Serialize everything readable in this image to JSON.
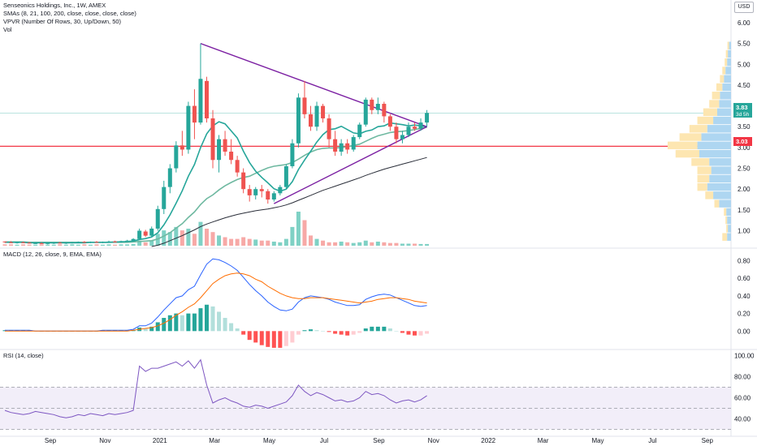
{
  "legend": {
    "symbol": "Senseonics Holdings, Inc., 1W, AMEX",
    "sma": "SMAs (8, 21, 100, 200, close, close, close, close)",
    "vpvr": "VPVR (Number Of Rows, 30, Up/Down, 50)",
    "vol": "Vol",
    "macd": "MACD (12, 26, close, 9, EMA, EMA)",
    "rsi": "RSI (14, close)"
  },
  "currency": "USD",
  "colors": {
    "up": "#26a69a",
    "down": "#ef5350",
    "sma8": "#26a69a",
    "sma21": "#6fb9a1",
    "sma100": "#2a2e39",
    "triangle": "#7b1fa2",
    "macd": "#2962ff",
    "signal": "#ff6d00",
    "rsi": "#7e57c2",
    "price_badge": "#26a69a",
    "hline_badge": "#f23645",
    "vp_up": "#aed6f1",
    "vp_down": "#fde6b1"
  },
  "price_badges": {
    "last_price": "3.83",
    "countdown": "3d 5h",
    "hline_price": "3.03"
  },
  "chart_data": [
    {
      "type": "candlestick",
      "title": "Senseonics Holdings, Inc., 1W, AMEX",
      "ylim": [
        0.6,
        6.0
      ],
      "y_ticks": [
        "6.00",
        "5.50",
        "5.00",
        "4.50",
        "4.00",
        "3.50",
        "3.00",
        "2.50",
        "2.00",
        "1.50",
        "1.00"
      ],
      "x_ticks": [
        "Sep",
        "Nov",
        "2021",
        "Mar",
        "May",
        "Jul",
        "Sep",
        "Nov",
        "2022",
        "Mar",
        "May",
        "Jul",
        "Sep"
      ],
      "candles": [
        [
          0.74,
          0.74,
          0.71,
          0.72
        ],
        [
          0.72,
          0.75,
          0.7,
          0.71
        ],
        [
          0.71,
          0.73,
          0.69,
          0.72
        ],
        [
          0.72,
          0.74,
          0.7,
          0.71
        ],
        [
          0.71,
          0.73,
          0.69,
          0.7
        ],
        [
          0.7,
          0.72,
          0.68,
          0.7
        ],
        [
          0.7,
          0.72,
          0.68,
          0.69
        ],
        [
          0.69,
          0.71,
          0.67,
          0.7
        ],
        [
          0.7,
          0.72,
          0.68,
          0.71
        ],
        [
          0.71,
          0.73,
          0.69,
          0.7
        ],
        [
          0.7,
          0.72,
          0.68,
          0.71
        ],
        [
          0.71,
          0.73,
          0.69,
          0.72
        ],
        [
          0.72,
          0.74,
          0.7,
          0.73
        ],
        [
          0.73,
          0.75,
          0.71,
          0.72
        ],
        [
          0.72,
          0.74,
          0.7,
          0.73
        ],
        [
          0.73,
          0.75,
          0.71,
          0.72
        ],
        [
          0.72,
          0.74,
          0.7,
          0.73
        ],
        [
          0.73,
          0.76,
          0.71,
          0.74
        ],
        [
          0.74,
          0.76,
          0.72,
          0.73
        ],
        [
          0.73,
          0.76,
          0.71,
          0.75
        ],
        [
          0.75,
          0.78,
          0.73,
          0.76
        ],
        [
          0.76,
          0.82,
          0.74,
          0.8
        ],
        [
          0.8,
          1.05,
          0.78,
          1.0
        ],
        [
          0.98,
          1.02,
          0.85,
          0.88
        ],
        [
          0.88,
          1.1,
          0.86,
          1.05
        ],
        [
          1.05,
          1.6,
          1.0,
          1.52
        ],
        [
          1.52,
          2.2,
          1.4,
          2.05
        ],
        [
          2.05,
          2.6,
          1.9,
          2.5
        ],
        [
          2.5,
          3.15,
          2.4,
          3.05
        ],
        [
          3.05,
          3.4,
          2.8,
          2.95
        ],
        [
          2.95,
          4.1,
          2.85,
          4.0
        ],
        [
          4.0,
          4.4,
          3.2,
          3.6
        ],
        [
          3.6,
          5.5,
          3.55,
          4.65
        ],
        [
          4.6,
          4.7,
          3.6,
          3.7
        ],
        [
          3.7,
          3.9,
          2.5,
          2.7
        ],
        [
          2.7,
          3.3,
          2.4,
          3.2
        ],
        [
          3.2,
          3.4,
          2.8,
          2.9
        ],
        [
          2.9,
          3.2,
          2.6,
          2.7
        ],
        [
          2.7,
          2.8,
          2.3,
          2.4
        ],
        [
          2.4,
          2.5,
          1.9,
          2.0
        ],
        [
          2.0,
          2.1,
          1.7,
          1.85
        ],
        [
          1.85,
          2.05,
          1.75,
          2.0
        ],
        [
          2.0,
          2.1,
          1.8,
          1.95
        ],
        [
          1.95,
          2.0,
          1.65,
          1.75
        ],
        [
          1.75,
          1.95,
          1.7,
          1.9
        ],
        [
          1.9,
          2.1,
          1.85,
          2.05
        ],
        [
          2.05,
          2.6,
          2.0,
          2.55
        ],
        [
          2.55,
          3.2,
          2.5,
          3.1
        ],
        [
          3.1,
          4.3,
          3.0,
          4.2
        ],
        [
          4.2,
          4.6,
          3.7,
          3.8
        ],
        [
          3.8,
          4.0,
          3.4,
          3.5
        ],
        [
          3.5,
          4.1,
          3.4,
          4.0
        ],
        [
          4.0,
          4.05,
          3.6,
          3.7
        ],
        [
          3.7,
          3.8,
          3.0,
          3.2
        ],
        [
          3.2,
          3.4,
          2.8,
          2.9
        ],
        [
          2.9,
          3.2,
          2.8,
          3.1
        ],
        [
          3.1,
          3.2,
          2.85,
          2.95
        ],
        [
          2.95,
          3.3,
          2.9,
          3.25
        ],
        [
          3.25,
          3.6,
          3.2,
          3.55
        ],
        [
          3.55,
          4.2,
          3.5,
          4.15
        ],
        [
          4.15,
          4.2,
          3.8,
          3.9
        ],
        [
          3.9,
          4.2,
          3.8,
          4.05
        ],
        [
          4.05,
          4.1,
          3.6,
          3.75
        ],
        [
          3.75,
          3.8,
          3.4,
          3.5
        ],
        [
          3.5,
          3.6,
          3.1,
          3.2
        ],
        [
          3.2,
          3.4,
          3.1,
          3.3
        ],
        [
          3.3,
          3.6,
          3.25,
          3.5
        ],
        [
          3.5,
          3.6,
          3.4,
          3.45
        ],
        [
          3.45,
          3.7,
          3.4,
          3.6
        ],
        [
          3.6,
          3.9,
          3.5,
          3.83
        ]
      ],
      "volume": [
        0.04,
        0.04,
        0.03,
        0.04,
        0.03,
        0.03,
        0.04,
        0.03,
        0.03,
        0.04,
        0.03,
        0.04,
        0.03,
        0.04,
        0.03,
        0.04,
        0.03,
        0.04,
        0.03,
        0.04,
        0.04,
        0.05,
        0.15,
        0.1,
        0.15,
        0.35,
        0.45,
        0.4,
        0.55,
        0.45,
        0.5,
        0.35,
        0.7,
        0.5,
        0.4,
        0.3,
        0.25,
        0.2,
        0.2,
        0.25,
        0.2,
        0.18,
        0.15,
        0.15,
        0.12,
        0.1,
        0.2,
        0.55,
        1.0,
        0.75,
        0.3,
        0.2,
        0.15,
        0.1,
        0.1,
        0.12,
        0.1,
        0.08,
        0.1,
        0.15,
        0.1,
        0.12,
        0.1,
        0.08,
        0.08,
        0.06,
        0.06,
        0.06,
        0.05,
        0.05
      ],
      "sma8": [
        0.72,
        0.72,
        0.72,
        0.72,
        0.71,
        0.71,
        0.71,
        0.71,
        0.71,
        0.71,
        0.71,
        0.71,
        0.71,
        0.71,
        0.72,
        0.72,
        0.72,
        0.72,
        0.73,
        0.73,
        0.74,
        0.75,
        0.79,
        0.81,
        0.85,
        0.95,
        1.14,
        1.38,
        1.66,
        1.96,
        2.31,
        2.59,
        3.0,
        3.33,
        3.52,
        3.62,
        3.57,
        3.4,
        3.23,
        2.91,
        2.64,
        2.43,
        2.28,
        2.15,
        2.01,
        1.95,
        2.0,
        2.18,
        2.47,
        2.7,
        2.91,
        3.13,
        3.31,
        3.43,
        3.45,
        3.51,
        3.43,
        3.35,
        3.33,
        3.39,
        3.42,
        3.5,
        3.52,
        3.59,
        3.57,
        3.55,
        3.52,
        3.54,
        3.52,
        3.5
      ],
      "sma21": [
        0.73,
        0.73,
        0.73,
        0.73,
        0.72,
        0.72,
        0.72,
        0.72,
        0.72,
        0.72,
        0.72,
        0.72,
        0.72,
        0.72,
        0.72,
        0.72,
        0.72,
        0.72,
        0.72,
        0.72,
        0.72,
        0.73,
        0.74,
        0.75,
        0.76,
        0.8,
        0.87,
        0.95,
        1.06,
        1.17,
        1.32,
        1.45,
        1.63,
        1.77,
        1.86,
        1.98,
        2.08,
        2.16,
        2.23,
        2.28,
        2.31,
        2.38,
        2.45,
        2.51,
        2.55,
        2.57,
        2.59,
        2.64,
        2.72,
        2.81,
        2.89,
        2.95,
        2.98,
        2.99,
        2.99,
        3.0,
        3.02,
        3.05,
        3.08,
        3.15,
        3.22,
        3.28,
        3.32,
        3.36,
        3.38,
        3.39,
        3.41,
        3.43,
        3.46,
        3.49
      ],
      "sma100": [
        null,
        null,
        null,
        null,
        null,
        null,
        null,
        null,
        null,
        null,
        null,
        null,
        null,
        null,
        null,
        null,
        null,
        null,
        null,
        null,
        null,
        null,
        null,
        null,
        0.62,
        0.65,
        0.7,
        0.76,
        0.82,
        0.88,
        0.95,
        1.02,
        1.1,
        1.16,
        1.21,
        1.26,
        1.31,
        1.35,
        1.39,
        1.42,
        1.45,
        1.48,
        1.5,
        1.52,
        1.55,
        1.58,
        1.62,
        1.67,
        1.73,
        1.79,
        1.85,
        1.91,
        1.97,
        2.02,
        2.07,
        2.12,
        2.17,
        2.22,
        2.27,
        2.33,
        2.38,
        2.43,
        2.48,
        2.52,
        2.56,
        2.6,
        2.64,
        2.68,
        2.72,
        2.76
      ],
      "triangle": {
        "upper": [
          [
            32,
            5.5
          ],
          [
            69,
            3.5
          ]
        ],
        "lower": [
          [
            44,
            1.65
          ],
          [
            69,
            3.5
          ]
        ]
      },
      "horizontal_line": 3.03,
      "volume_profile": {
        "row_prices": [
          0.85,
          1.05,
          1.25,
          1.45,
          1.65,
          1.85,
          2.05,
          2.25,
          2.45,
          2.65,
          2.85,
          3.05,
          3.25,
          3.45,
          3.65,
          3.85,
          4.05,
          4.25,
          4.45,
          4.65,
          4.85,
          5.05,
          5.25,
          5.45
        ],
        "up": [
          0.1,
          0.08,
          0.1,
          0.12,
          0.3,
          0.45,
          0.6,
          0.55,
          0.5,
          0.55,
          0.8,
          0.85,
          0.75,
          0.6,
          0.45,
          0.35,
          0.3,
          0.28,
          0.22,
          0.18,
          0.14,
          0.1,
          0.08,
          0.05
        ],
        "down": [
          0.12,
          0.04,
          0.04,
          0.06,
          0.12,
          0.2,
          0.25,
          0.3,
          0.35,
          0.45,
          0.6,
          0.75,
          0.55,
          0.45,
          0.4,
          0.35,
          0.25,
          0.2,
          0.15,
          0.1,
          0.08,
          0.06,
          0.05,
          0.04
        ]
      }
    },
    {
      "type": "line",
      "title": "MACD (12, 26, close, 9, EMA, EMA)",
      "ylim": [
        -0.2,
        0.86
      ],
      "y_ticks": [
        "0.80",
        "0.60",
        "0.40",
        "0.20",
        "0.00"
      ],
      "macd": [
        0.01,
        0.01,
        0.01,
        0.01,
        0.01,
        0.0,
        0.0,
        0.0,
        0.0,
        0.0,
        0.0,
        0.0,
        0.0,
        0.0,
        0.0,
        0.0,
        0.01,
        0.01,
        0.01,
        0.01,
        0.01,
        0.02,
        0.06,
        0.06,
        0.09,
        0.16,
        0.24,
        0.31,
        0.38,
        0.4,
        0.47,
        0.51,
        0.64,
        0.76,
        0.82,
        0.81,
        0.78,
        0.74,
        0.69,
        0.61,
        0.53,
        0.46,
        0.4,
        0.33,
        0.28,
        0.24,
        0.23,
        0.25,
        0.33,
        0.38,
        0.4,
        0.39,
        0.38,
        0.36,
        0.33,
        0.31,
        0.29,
        0.29,
        0.3,
        0.36,
        0.39,
        0.41,
        0.42,
        0.41,
        0.38,
        0.35,
        0.32,
        0.29,
        0.28,
        0.29
      ],
      "signal": [
        0.0,
        0.0,
        0.0,
        0.0,
        0.0,
        0.0,
        0.0,
        0.0,
        0.0,
        0.0,
        0.0,
        0.0,
        0.0,
        0.0,
        0.0,
        0.0,
        0.0,
        0.0,
        0.0,
        0.0,
        0.0,
        0.01,
        0.02,
        0.03,
        0.04,
        0.06,
        0.09,
        0.13,
        0.18,
        0.22,
        0.27,
        0.31,
        0.38,
        0.46,
        0.54,
        0.59,
        0.63,
        0.65,
        0.66,
        0.65,
        0.63,
        0.59,
        0.56,
        0.51,
        0.47,
        0.43,
        0.4,
        0.38,
        0.37,
        0.37,
        0.38,
        0.38,
        0.38,
        0.37,
        0.36,
        0.35,
        0.34,
        0.33,
        0.32,
        0.33,
        0.34,
        0.36,
        0.37,
        0.38,
        0.38,
        0.37,
        0.36,
        0.34,
        0.33,
        0.32
      ]
    },
    {
      "type": "line",
      "title": "RSI (14, close)",
      "ylim": [
        25,
        105
      ],
      "y_ticks": [
        "100.00",
        "80.00",
        "60.00",
        "40.00"
      ],
      "bands": [
        70,
        50,
        30
      ],
      "rsi": [
        48,
        46,
        45,
        44,
        45,
        47,
        46,
        45,
        44,
        42,
        41,
        42,
        44,
        43,
        45,
        44,
        43,
        45,
        44,
        45,
        46,
        48,
        90,
        85,
        88,
        88,
        90,
        92,
        94,
        90,
        95,
        88,
        96,
        72,
        55,
        58,
        60,
        57,
        55,
        52,
        51,
        53,
        52,
        50,
        52,
        54,
        56,
        62,
        72,
        66,
        62,
        65,
        63,
        60,
        57,
        58,
        56,
        57,
        60,
        66,
        63,
        64,
        62,
        58,
        55,
        57,
        58,
        56,
        58,
        62
      ]
    }
  ]
}
